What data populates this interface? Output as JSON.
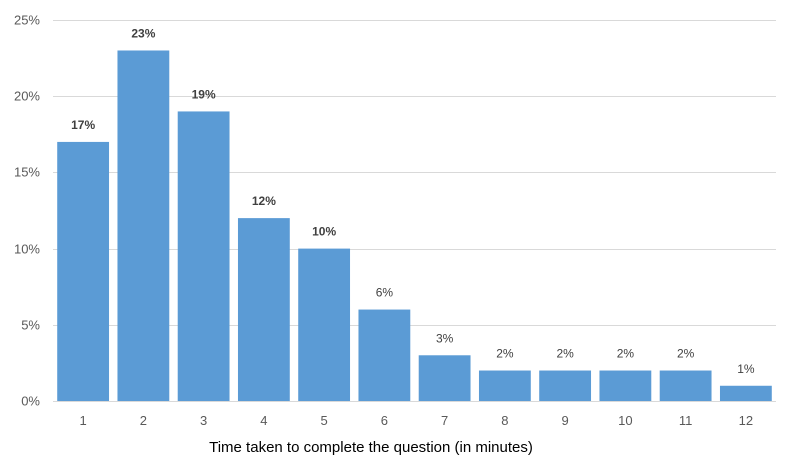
{
  "chart_data": {
    "type": "bar",
    "title": "",
    "xlabel": "Time taken to complete the question (in minutes)",
    "ylabel": "",
    "categories": [
      "1",
      "2",
      "3",
      "4",
      "5",
      "6",
      "7",
      "8",
      "9",
      "10",
      "11",
      "12"
    ],
    "values": [
      17,
      23,
      19,
      12,
      10,
      6,
      3,
      2,
      2,
      2,
      2,
      1
    ],
    "data_labels": [
      "17%",
      "23%",
      "19%",
      "12%",
      "10%",
      "6%",
      "3%",
      "2%",
      "2%",
      "2%",
      "2%",
      "1%"
    ],
    "bold_labels": [
      true,
      true,
      true,
      true,
      true,
      false,
      false,
      false,
      false,
      false,
      false,
      false
    ],
    "ylim": [
      0,
      25
    ],
    "yticks": [
      0,
      5,
      10,
      15,
      20,
      25
    ],
    "ytick_labels": [
      "0%",
      "5%",
      "10%",
      "15%",
      "20%",
      "25%"
    ],
    "grid": true,
    "legend": "none",
    "bar_color": "#5B9BD5",
    "grid_color": "#D9D9D9"
  }
}
